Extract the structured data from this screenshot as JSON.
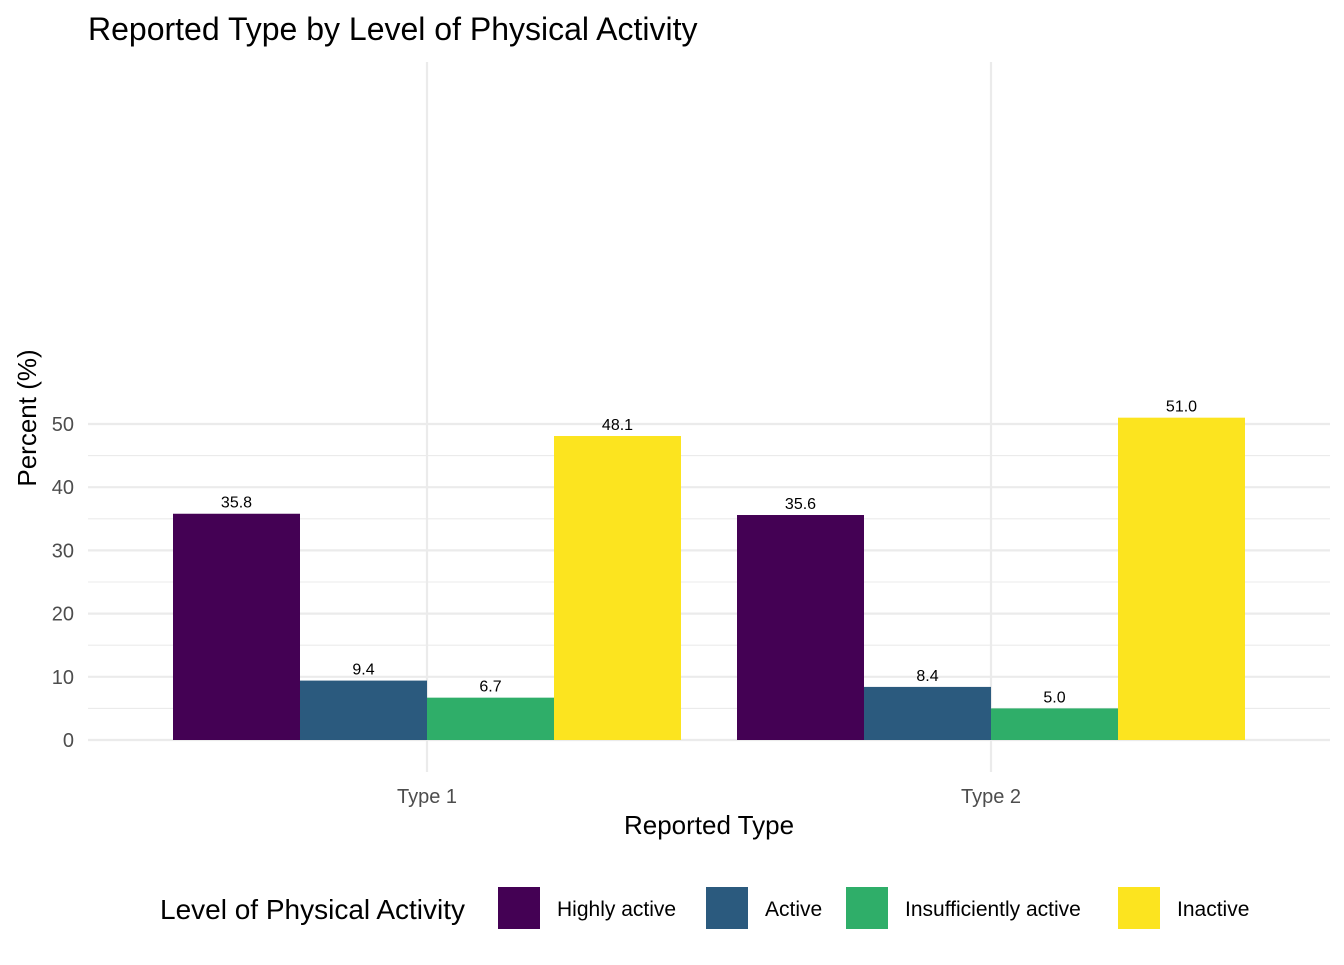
{
  "chart_data": {
    "type": "bar",
    "title": "Reported Type by Level of Physical Activity",
    "xlabel": "Reported Type",
    "ylabel": "Percent (%)",
    "categories": [
      "Type 1",
      "Type 2"
    ],
    "series": [
      {
        "name": "Highly active",
        "color": "#440154",
        "values": [
          35.8,
          35.6
        ],
        "labels": [
          "35.8",
          "35.6"
        ]
      },
      {
        "name": "Active",
        "color": "#2b5a7e",
        "values": [
          9.4,
          8.4
        ],
        "labels": [
          "9.4",
          "8.4"
        ]
      },
      {
        "name": "Insufficiently active",
        "color": "#2fae69",
        "values": [
          6.7,
          5.0
        ],
        "labels": [
          "6.7",
          "5.0"
        ]
      },
      {
        "name": "Inactive",
        "color": "#fce41f",
        "values": [
          48.1,
          51.0
        ],
        "labels": [
          "48.1",
          "51.0"
        ]
      }
    ],
    "ylim": [
      0,
      53.5
    ],
    "yticks": [
      0,
      10,
      20,
      30,
      40,
      50
    ],
    "ytick_labels": [
      "0",
      "10",
      "20",
      "30",
      "40",
      "50"
    ],
    "grid": true,
    "legend": {
      "title": "Level of Physical Activity",
      "position": "bottom"
    }
  }
}
